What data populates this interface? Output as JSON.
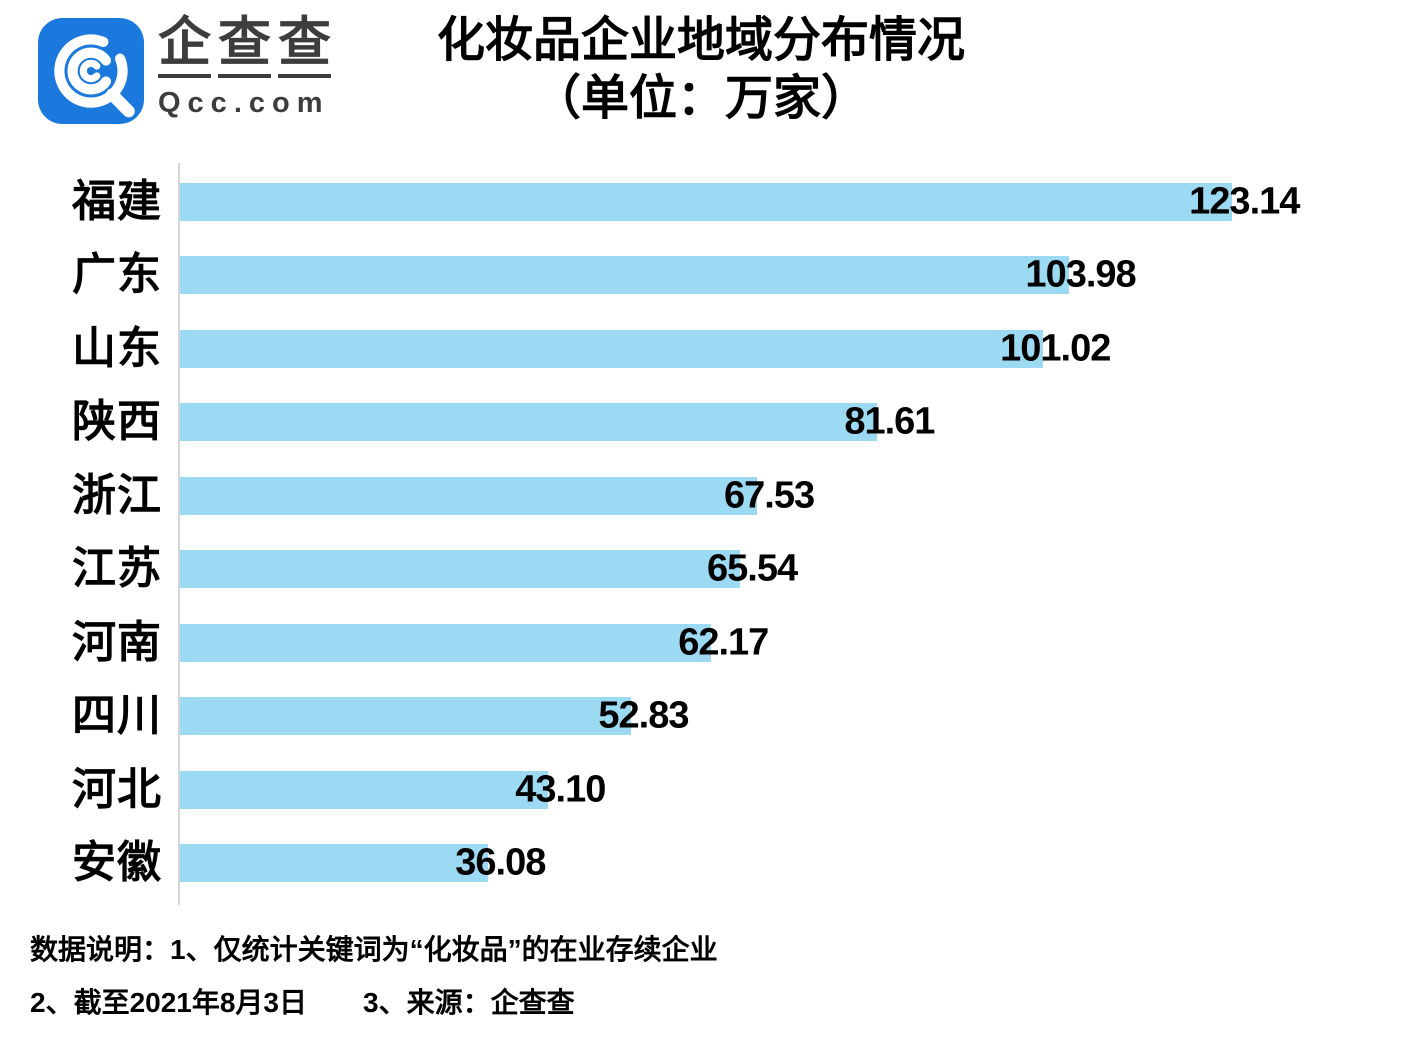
{
  "brand": {
    "logo_text_cn": "企查查",
    "logo_text_en": "Qcc.com",
    "icon_blue": "#1b79dd",
    "logo_text_color": "#3d3d3d"
  },
  "title": {
    "line1": "化妆品企业地域分布情况",
    "line2": "（单位：万家）"
  },
  "chart_data": {
    "type": "bar",
    "orientation": "horizontal",
    "title": "化妆品企业地域分布情况",
    "subtitle": "（单位：万家）",
    "unit": "万家",
    "categories": [
      "福建",
      "广东",
      "山东",
      "陕西",
      "浙江",
      "江苏",
      "河南",
      "四川",
      "河北",
      "安徽"
    ],
    "values": [
      123.14,
      103.98,
      101.02,
      81.61,
      67.53,
      65.54,
      62.17,
      52.83,
      43.1,
      36.08
    ],
    "value_labels": [
      "123.14",
      "103.98",
      "101.02",
      "81.61",
      "67.53",
      "65.54",
      "62.17",
      "52.83",
      "43.10",
      "36.08"
    ],
    "xlim": [
      0,
      143
    ],
    "grid": false,
    "legend": false,
    "bar_color": "#9cd9f2",
    "axis_line_color": "#d6d6d6",
    "label_color": "#000000"
  },
  "footnotes": {
    "line1": "数据说明：1、仅统计关键词为“化妆品”的在业存续企业",
    "line2": "2、截至2021年8月3日　　3、来源：企查查"
  }
}
